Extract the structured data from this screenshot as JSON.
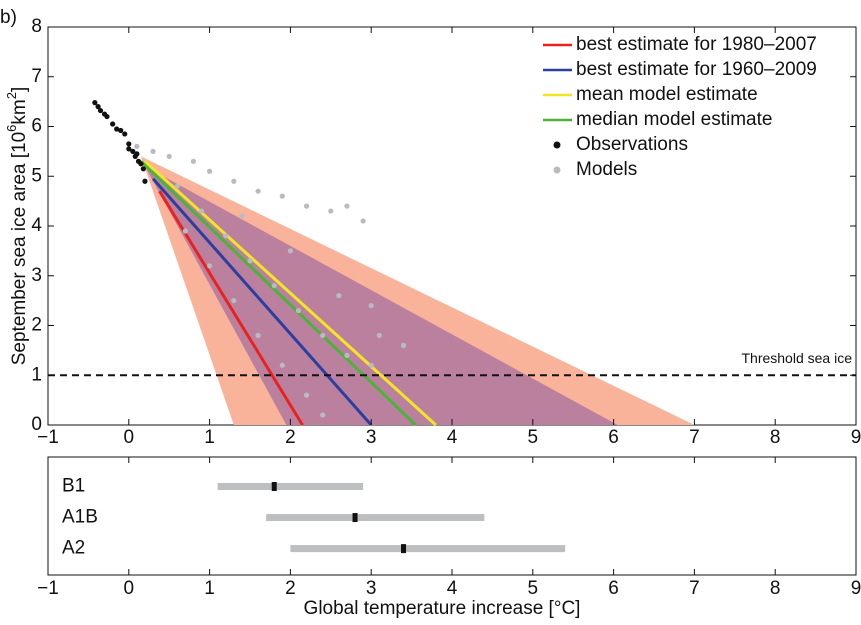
{
  "chart_data": [
    {
      "type": "line",
      "panel_label": "b)",
      "ylabel_parts": [
        "September sea ice area [10",
        "6",
        "km",
        "2",
        "]"
      ],
      "xlim": [
        -1,
        9
      ],
      "ylim": [
        0,
        8
      ],
      "xticks": [
        {
          "value": -1,
          "label": "−1"
        },
        0,
        1,
        2,
        3,
        4,
        5,
        6,
        7,
        8,
        9
      ],
      "yticks": [
        0,
        1,
        2,
        3,
        4,
        5,
        6,
        7,
        8
      ],
      "bands": [
        {
          "color": "#f9b39b",
          "x": [
            0.15,
            7.0,
            1.3
          ],
          "values": [
            5.4,
            0,
            0
          ]
        },
        {
          "color": "#a56f9f",
          "x": [
            0.2,
            6.05,
            1.95
          ],
          "values": [
            5.2,
            0,
            0
          ]
        }
      ],
      "hline": {
        "value": 1,
        "label": "Threshold sea ice"
      },
      "series": [
        {
          "name": "best estimate for 1980–2007",
          "kind": "line",
          "color": "#e8231f",
          "x": [
            0.38,
            2.15
          ],
          "values": [
            4.7,
            0
          ]
        },
        {
          "name": "best estimate for 1960–2009",
          "kind": "line",
          "color": "#2a3fa0",
          "x": [
            0.3,
            3.0
          ],
          "values": [
            4.95,
            0
          ]
        },
        {
          "name": "mean model estimate",
          "kind": "line",
          "color": "#f2e526",
          "x": [
            0.2,
            3.8
          ],
          "values": [
            5.3,
            0
          ]
        },
        {
          "name": "median model estimate",
          "kind": "line",
          "color": "#4cb33a",
          "x": [
            0.15,
            3.55
          ],
          "values": [
            5.3,
            0
          ]
        },
        {
          "name": "Observations",
          "kind": "scatter",
          "color": "#111111",
          "x": [
            -0.42,
            -0.38,
            -0.35,
            -0.3,
            -0.27,
            -0.2,
            -0.15,
            -0.1,
            -0.05,
            0.0,
            0.0,
            0.05,
            0.08,
            0.1,
            0.12,
            0.15,
            0.18,
            0.2
          ],
          "values": [
            6.48,
            6.4,
            6.32,
            6.25,
            6.2,
            6.05,
            5.95,
            5.92,
            5.85,
            5.65,
            5.55,
            5.5,
            5.4,
            5.45,
            5.3,
            5.25,
            5.15,
            4.9
          ]
        },
        {
          "name": "Models",
          "kind": "scatter",
          "color": "#b8bcbf",
          "x": [
            0.1,
            0.3,
            0.5,
            0.8,
            1.0,
            1.3,
            1.6,
            1.9,
            2.2,
            2.5,
            2.7,
            2.9,
            0.6,
            0.9,
            1.2,
            1.5,
            1.8,
            2.1,
            2.4,
            2.7,
            3.0,
            0.7,
            1.0,
            1.3,
            1.6,
            1.9,
            2.2,
            2.4,
            1.4,
            2.0,
            2.6,
            3.1,
            3.4,
            3.0
          ],
          "values": [
            5.6,
            5.5,
            5.4,
            5.3,
            5.1,
            4.9,
            4.7,
            4.6,
            4.4,
            4.3,
            4.4,
            4.1,
            4.8,
            4.3,
            3.8,
            3.3,
            2.8,
            2.3,
            1.8,
            1.4,
            1.2,
            3.9,
            3.2,
            2.5,
            1.8,
            1.2,
            0.6,
            0.2,
            4.2,
            3.5,
            2.6,
            1.8,
            1.6,
            2.4
          ]
        }
      ]
    },
    {
      "type": "range",
      "xlabel": "Global temperature increase [°C]",
      "xlim": [
        -1,
        9
      ],
      "xticks": [
        {
          "value": -1,
          "label": "−1"
        },
        0,
        1,
        2,
        3,
        4,
        5,
        6,
        7,
        8,
        9
      ],
      "categories": [
        "B1",
        "A1B",
        "A2"
      ],
      "low": [
        1.1,
        1.7,
        2.0
      ],
      "high": [
        2.9,
        4.4,
        5.4
      ],
      "median": [
        1.8,
        2.8,
        3.4
      ],
      "color": "#bcbec0",
      "median_color": "#111111"
    }
  ]
}
